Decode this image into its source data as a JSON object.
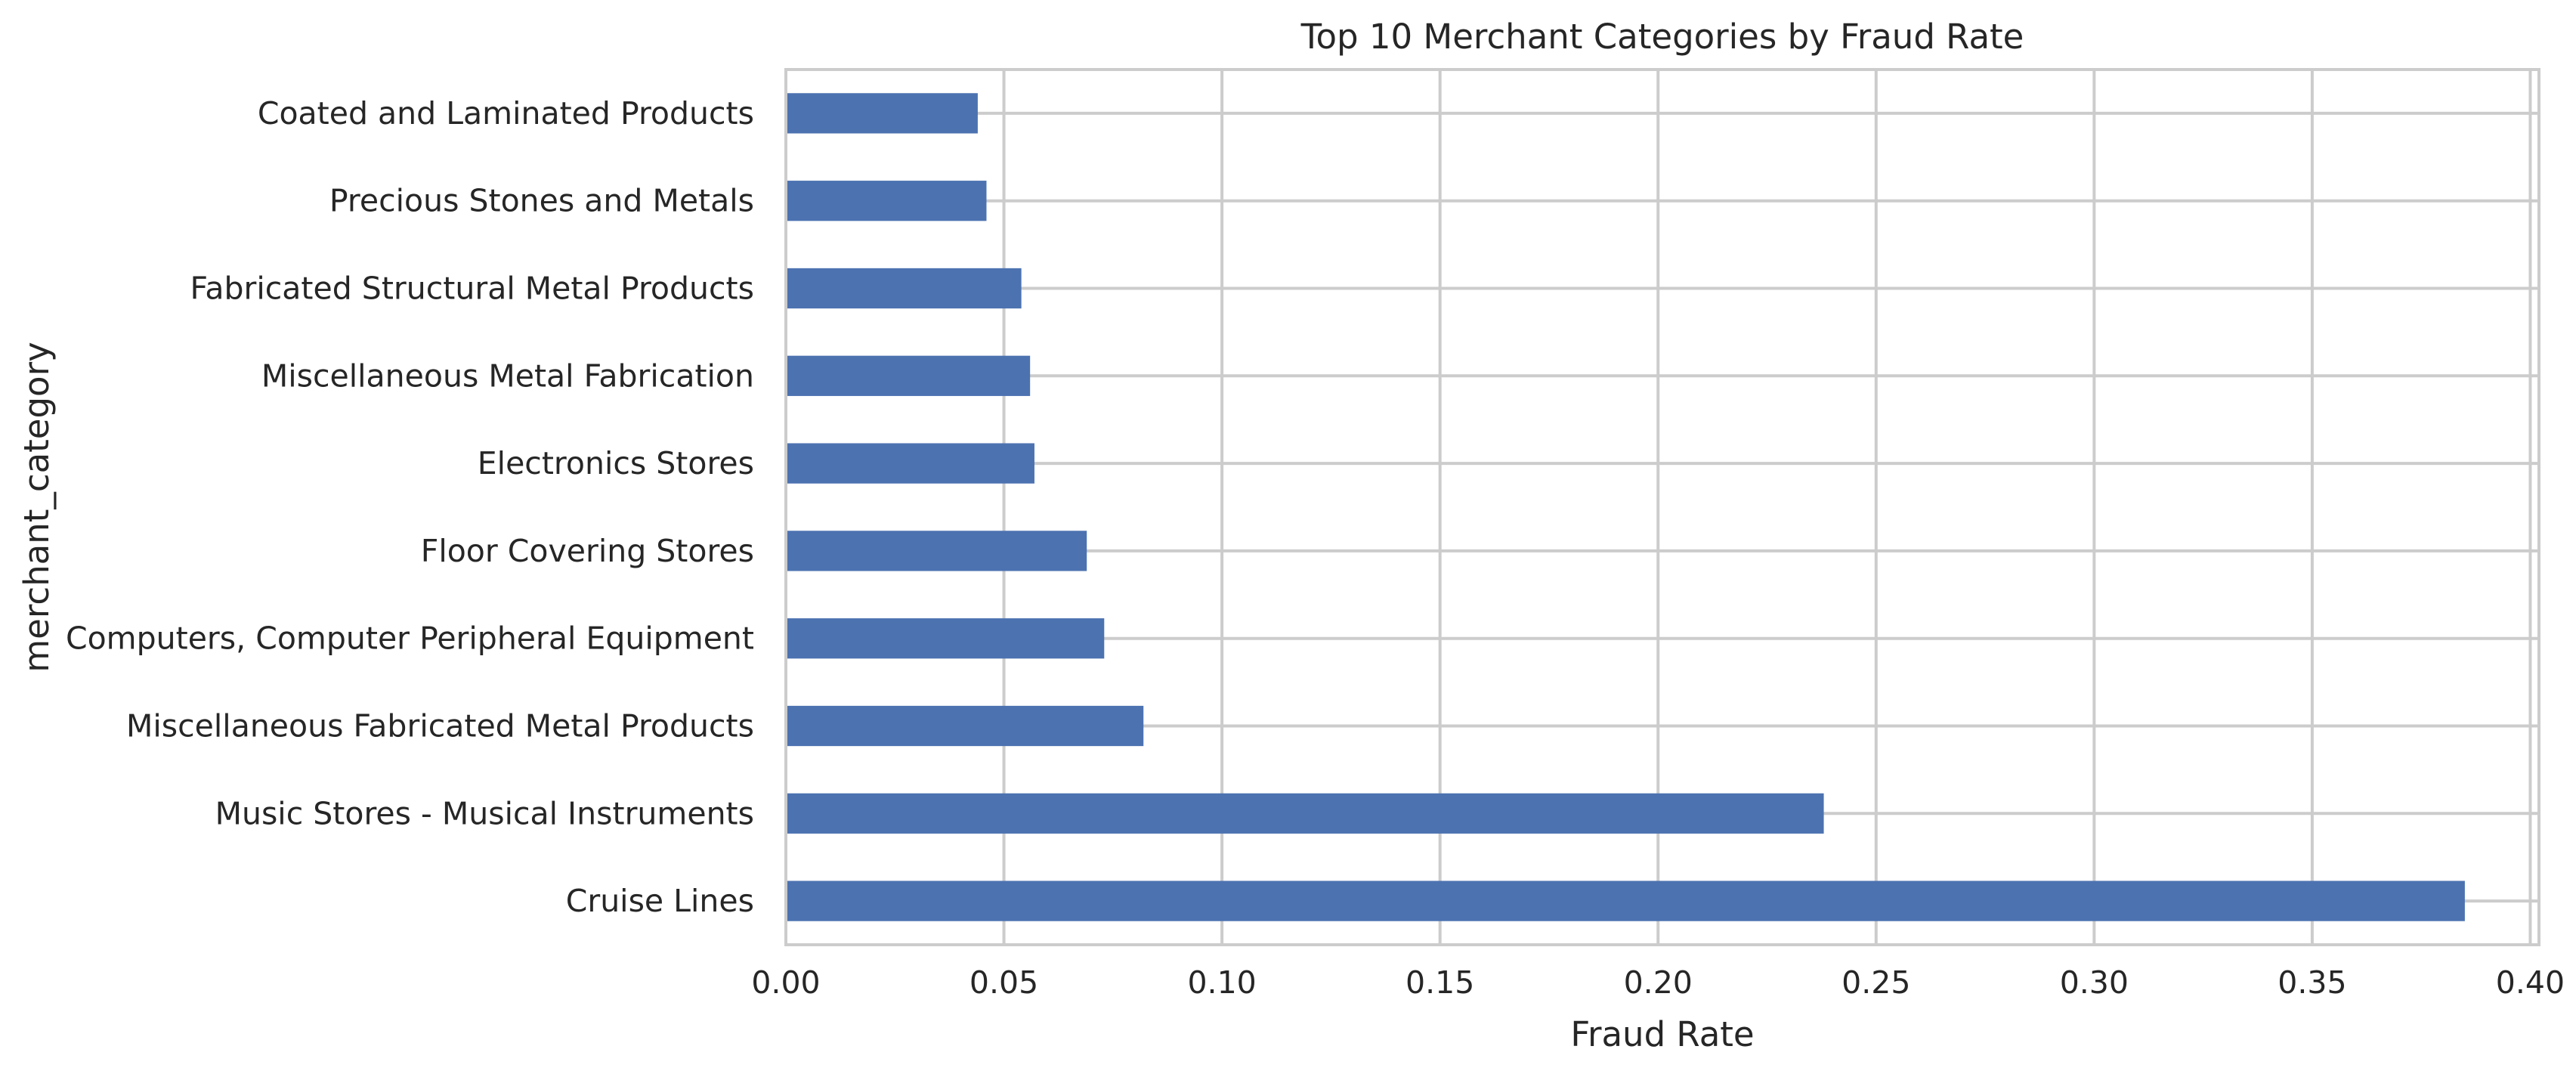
{
  "chart_data": {
    "type": "bar",
    "orientation": "horizontal",
    "title": "Top 10 Merchant Categories by Fraud Rate",
    "xlabel": "Fraud Rate",
    "ylabel": "merchant_category",
    "categories": [
      "Coated and Laminated Products",
      "Precious Stones and Metals",
      "Fabricated Structural Metal Products",
      "Miscellaneous Metal Fabrication",
      "Electronics Stores",
      "Floor Covering Stores",
      "Computers, Computer Peripheral Equipment",
      "Miscellaneous Fabricated Metal Products",
      "Music Stores - Musical Instruments",
      "Cruise Lines"
    ],
    "values": [
      0.044,
      0.046,
      0.054,
      0.056,
      0.057,
      0.069,
      0.073,
      0.082,
      0.238,
      0.385
    ],
    "xlim": [
      0,
      0.402
    ],
    "xticks": [
      0.0,
      0.05,
      0.1,
      0.15,
      0.2,
      0.25,
      0.3,
      0.35,
      0.4
    ],
    "xtick_labels": [
      "0.00",
      "0.05",
      "0.10",
      "0.15",
      "0.20",
      "0.25",
      "0.30",
      "0.35",
      "0.40"
    ],
    "grid": true,
    "bar_color": "#4c72b0"
  }
}
